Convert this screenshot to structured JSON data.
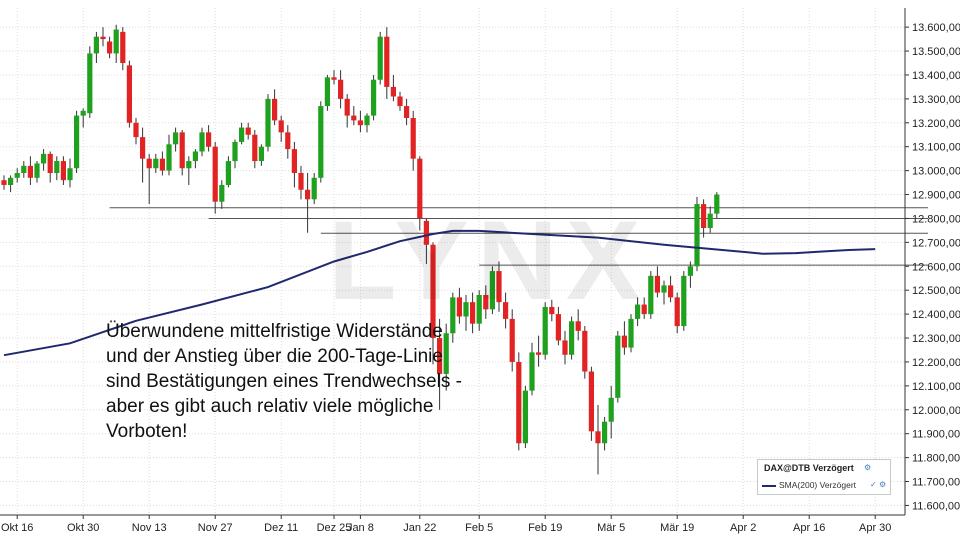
{
  "chart_data": {
    "type": "candlestick",
    "ylim": [
      11560,
      13680
    ],
    "y_ticks": [
      "13.600,00",
      "13.500,00",
      "13.400,00",
      "13.300,00",
      "13.200,00",
      "13.100,00",
      "13.000,00",
      "12.900,00",
      "12.800,00",
      "12.700,00",
      "12.600,00",
      "12.500,00",
      "12.400,00",
      "12.300,00",
      "12.200,00",
      "12.100,00",
      "12.000,00",
      "11.900,00",
      "11.800,00",
      "11.700,00",
      "11.600,00"
    ],
    "y_tick_values": [
      13600,
      13500,
      13400,
      13300,
      13200,
      13100,
      13000,
      12900,
      12800,
      12700,
      12600,
      12500,
      12400,
      12300,
      12200,
      12100,
      12000,
      11900,
      11800,
      11700,
      11600
    ],
    "x_ticks": [
      "Okt 16",
      "Okt 30",
      "Nov 13",
      "Nov 27",
      "Dez 11",
      "Dez 25",
      "Jan 8",
      "Jan 22",
      "Feb 5",
      "Feb 19",
      "Mär 5",
      "Mär 19",
      "Apr 2",
      "Apr 16",
      "Apr 30"
    ],
    "x_tick_index": [
      2,
      12,
      22,
      32,
      42,
      50,
      54,
      63,
      72,
      82,
      92,
      102,
      112,
      122,
      132
    ],
    "up_color": "#1fa11f",
    "down_color": "#e22323",
    "sma_color": "#1f2a6e",
    "support_lines": [
      {
        "y": 12845,
        "from": 16,
        "to": 140
      },
      {
        "y": 12800,
        "from": 31,
        "to": 140
      },
      {
        "y": 12738,
        "from": 48,
        "to": 140
      },
      {
        "y": 12605,
        "from": 72,
        "to": 140
      }
    ],
    "candles": [
      [
        12960,
        12980,
        12920,
        12940
      ],
      [
        12940,
        12980,
        12910,
        12970
      ],
      [
        12970,
        13010,
        12950,
        12990
      ],
      [
        12990,
        13040,
        12970,
        13020
      ],
      [
        13020,
        13060,
        12940,
        12970
      ],
      [
        12970,
        13040,
        12950,
        13030
      ],
      [
        13030,
        13090,
        13000,
        13070
      ],
      [
        13070,
        13080,
        12950,
        12990
      ],
      [
        12990,
        13060,
        12960,
        13040
      ],
      [
        13040,
        13060,
        12940,
        12960
      ],
      [
        12960,
        13050,
        12930,
        13010
      ],
      [
        13010,
        13250,
        12990,
        13230
      ],
      [
        13230,
        13260,
        13180,
        13250
      ],
      [
        13240,
        13520,
        13220,
        13490
      ],
      [
        13490,
        13580,
        13450,
        13560
      ],
      [
        13560,
        13600,
        13520,
        13550
      ],
      [
        13540,
        13560,
        13470,
        13490
      ],
      [
        13490,
        13610,
        13450,
        13590
      ],
      [
        13580,
        13600,
        13420,
        13450
      ],
      [
        13440,
        13460,
        13180,
        13200
      ],
      [
        13200,
        13220,
        13110,
        13140
      ],
      [
        13140,
        13180,
        12950,
        13050
      ],
      [
        13050,
        13070,
        12860,
        13010
      ],
      [
        13010,
        13070,
        12990,
        13050
      ],
      [
        13050,
        13080,
        12980,
        13000
      ],
      [
        13000,
        13150,
        12980,
        13110
      ],
      [
        13110,
        13180,
        13080,
        13160
      ],
      [
        13160,
        13170,
        12980,
        13010
      ],
      [
        13010,
        13060,
        12940,
        13040
      ],
      [
        13040,
        13090,
        13010,
        13080
      ],
      [
        13080,
        13180,
        13060,
        13160
      ],
      [
        13160,
        13190,
        13080,
        13100
      ],
      [
        13100,
        13120,
        12820,
        12870
      ],
      [
        12870,
        12960,
        12840,
        12940
      ],
      [
        12940,
        13060,
        12930,
        13040
      ],
      [
        13040,
        13130,
        13010,
        13120
      ],
      [
        13120,
        13200,
        13110,
        13180
      ],
      [
        13180,
        13200,
        13130,
        13150
      ],
      [
        13150,
        13170,
        13010,
        13040
      ],
      [
        13040,
        13110,
        13020,
        13100
      ],
      [
        13100,
        13320,
        13080,
        13300
      ],
      [
        13300,
        13340,
        13190,
        13210
      ],
      [
        13210,
        13230,
        13120,
        13160
      ],
      [
        13160,
        13190,
        13050,
        13090
      ],
      [
        13090,
        13120,
        12930,
        12990
      ],
      [
        12990,
        13020,
        12880,
        12920
      ],
      [
        12920,
        12990,
        12740,
        12880
      ],
      [
        12880,
        12990,
        12860,
        12970
      ],
      [
        12970,
        13290,
        12950,
        13270
      ],
      [
        13270,
        13400,
        13250,
        13390
      ],
      [
        13390,
        13420,
        13360,
        13380
      ],
      [
        13380,
        13420,
        13260,
        13300
      ],
      [
        13300,
        13320,
        13180,
        13230
      ],
      [
        13230,
        13270,
        13190,
        13210
      ],
      [
        13210,
        13250,
        13160,
        13190
      ],
      [
        13190,
        13240,
        13160,
        13230
      ],
      [
        13230,
        13400,
        13210,
        13380
      ],
      [
        13380,
        13580,
        13360,
        13560
      ],
      [
        13560,
        13600,
        13300,
        13350
      ],
      [
        13350,
        13400,
        13290,
        13310
      ],
      [
        13310,
        13330,
        13250,
        13270
      ],
      [
        13270,
        13300,
        13190,
        13220
      ],
      [
        13220,
        13250,
        13000,
        13050
      ],
      [
        13050,
        13060,
        12750,
        12800
      ],
      [
        12790,
        12800,
        12610,
        12690
      ],
      [
        12690,
        12700,
        12190,
        12300
      ],
      [
        12300,
        12380,
        12000,
        12150
      ],
      [
        12150,
        12360,
        12080,
        12320
      ],
      [
        12320,
        12490,
        12280,
        12470
      ],
      [
        12470,
        12510,
        12360,
        12390
      ],
      [
        12390,
        12480,
        12330,
        12450
      ],
      [
        12450,
        12490,
        12320,
        12360
      ],
      [
        12360,
        12500,
        12330,
        12480
      ],
      [
        12480,
        12520,
        12380,
        12420
      ],
      [
        12420,
        12600,
        12400,
        12580
      ],
      [
        12580,
        12620,
        12410,
        12450
      ],
      [
        12450,
        12490,
        12340,
        12380
      ],
      [
        12380,
        12420,
        12160,
        12200
      ],
      [
        12200,
        12240,
        11830,
        11860
      ],
      [
        11860,
        12100,
        11840,
        12080
      ],
      [
        12080,
        12280,
        12060,
        12240
      ],
      [
        12240,
        12310,
        12180,
        12230
      ],
      [
        12230,
        12450,
        12210,
        12430
      ],
      [
        12430,
        12460,
        12370,
        12400
      ],
      [
        12400,
        12430,
        12270,
        12290
      ],
      [
        12290,
        12330,
        12190,
        12230
      ],
      [
        12230,
        12390,
        12210,
        12370
      ],
      [
        12370,
        12420,
        12290,
        12330
      ],
      [
        12330,
        12350,
        12130,
        12160
      ],
      [
        12160,
        12180,
        11870,
        11910
      ],
      [
        11910,
        12020,
        11730,
        11860
      ],
      [
        11860,
        11970,
        11830,
        11950
      ],
      [
        11950,
        12100,
        11880,
        12050
      ],
      [
        12050,
        12330,
        12030,
        12310
      ],
      [
        12310,
        12370,
        12230,
        12260
      ],
      [
        12260,
        12400,
        12240,
        12380
      ],
      [
        12380,
        12470,
        12350,
        12440
      ],
      [
        12440,
        12470,
        12380,
        12400
      ],
      [
        12400,
        12580,
        12380,
        12560
      ],
      [
        12560,
        12600,
        12470,
        12490
      ],
      [
        12490,
        12540,
        12440,
        12520
      ],
      [
        12520,
        12560,
        12450,
        12470
      ],
      [
        12470,
        12490,
        12320,
        12350
      ],
      [
        12350,
        12580,
        12330,
        12560
      ],
      [
        12560,
        12620,
        12510,
        12600
      ],
      [
        12600,
        12890,
        12580,
        12860
      ],
      [
        12860,
        12880,
        12720,
        12760
      ],
      [
        12760,
        12850,
        12740,
        12820
      ],
      [
        12820,
        12910,
        12800,
        12900
      ]
    ],
    "sma_points": [
      [
        0,
        12228
      ],
      [
        10,
        12278
      ],
      [
        20,
        12372
      ],
      [
        30,
        12440
      ],
      [
        40,
        12513
      ],
      [
        50,
        12620
      ],
      [
        55,
        12660
      ],
      [
        60,
        12705
      ],
      [
        65,
        12735
      ],
      [
        68,
        12748
      ],
      [
        72,
        12748
      ],
      [
        80,
        12735
      ],
      [
        90,
        12720
      ],
      [
        100,
        12690
      ],
      [
        108,
        12670
      ],
      [
        112,
        12660
      ],
      [
        115,
        12652
      ],
      [
        120,
        12655
      ],
      [
        124,
        12662
      ],
      [
        128,
        12668
      ],
      [
        132,
        12672
      ]
    ]
  },
  "annotation": {
    "lines": [
      "Überwundene mittelfristige Widerstände",
      "und der Anstieg über die 200-Tage-Linie",
      "sind Bestätigungen eines Trendwechsels -",
      "aber es gibt auch relativ viele mögliche",
      "Vorboten!"
    ]
  },
  "legend": {
    "title": "DAX@DTB Verzögert",
    "series": "SMA(200) Verzögert"
  },
  "watermark": "LYNX"
}
